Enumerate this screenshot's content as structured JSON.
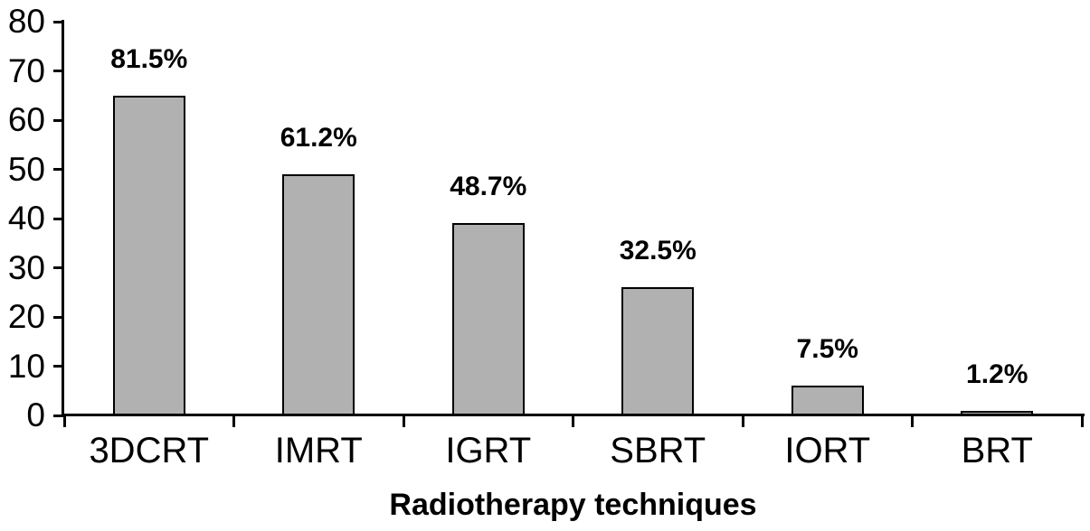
{
  "chart_data": {
    "type": "bar",
    "categories": [
      "3DCRT",
      "IMRT",
      "IGRT",
      "SBRT",
      "IORT",
      "BRT"
    ],
    "values": [
      65,
      49,
      39,
      26,
      6,
      1
    ],
    "value_labels": [
      "81.5%",
      "61.2%",
      "48.7%",
      "32.5%",
      "7.5%",
      "1.2%"
    ],
    "title": "",
    "xlabel": "Radiotherapy techniques",
    "ylabel": "",
    "ylim": [
      0,
      80
    ],
    "yticks": [
      0,
      10,
      20,
      30,
      40,
      50,
      60,
      70,
      80
    ],
    "grid": false,
    "legend": "none",
    "bar_fill_color": "#b1b1b1",
    "bar_border_color": "#000000",
    "axis_color": "#000000"
  }
}
